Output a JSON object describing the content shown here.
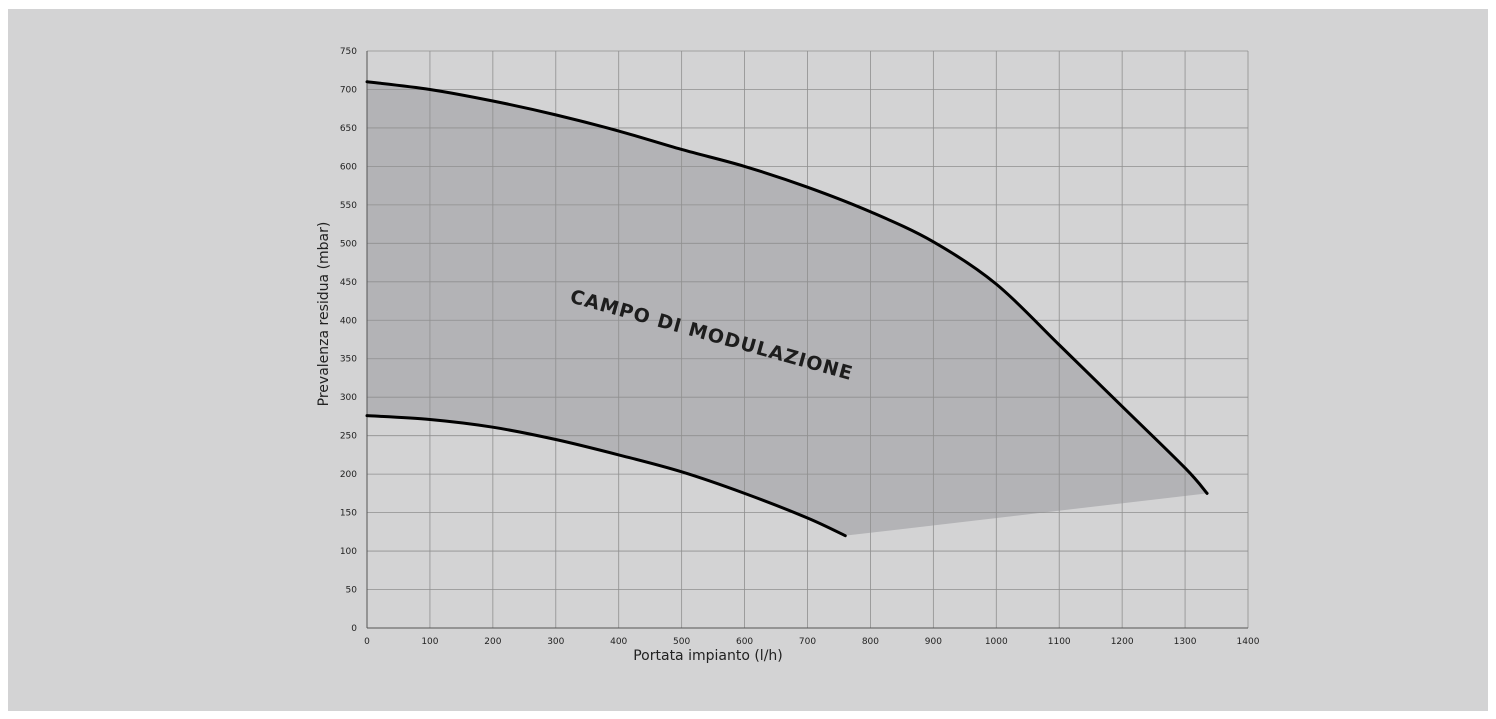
{
  "chart_data": {
    "type": "area",
    "title": "",
    "xlabel": "Portata impianto (l/h)",
    "ylabel": "Prevalenza residua (mbar)",
    "xlim": [
      0,
      1400
    ],
    "ylim": [
      0,
      750
    ],
    "x_ticks": [
      0,
      100,
      200,
      300,
      400,
      500,
      600,
      700,
      800,
      900,
      1000,
      1100,
      1200,
      1300,
      1400
    ],
    "y_ticks": [
      0,
      50,
      100,
      150,
      200,
      250,
      300,
      350,
      400,
      450,
      500,
      550,
      600,
      650,
      700,
      750
    ],
    "grid": true,
    "legend": "none",
    "region_label": "CAMPO DI MODULAZIONE",
    "region_color": "#b3b3b6",
    "curve_color": "#000000",
    "series": [
      {
        "role": "upper-curve",
        "points": [
          [
            0,
            710
          ],
          [
            100,
            700
          ],
          [
            200,
            685
          ],
          [
            300,
            667
          ],
          [
            400,
            646
          ],
          [
            500,
            622
          ],
          [
            600,
            600
          ],
          [
            700,
            573
          ],
          [
            800,
            541
          ],
          [
            900,
            502
          ],
          [
            1000,
            447
          ],
          [
            1100,
            368
          ],
          [
            1200,
            288
          ],
          [
            1300,
            208
          ],
          [
            1335,
            175
          ]
        ]
      },
      {
        "role": "lower-curve",
        "points": [
          [
            0,
            276
          ],
          [
            100,
            271
          ],
          [
            200,
            261
          ],
          [
            300,
            245
          ],
          [
            400,
            225
          ],
          [
            500,
            203
          ],
          [
            600,
            175
          ],
          [
            700,
            143
          ],
          [
            760,
            120
          ]
        ]
      }
    ]
  }
}
